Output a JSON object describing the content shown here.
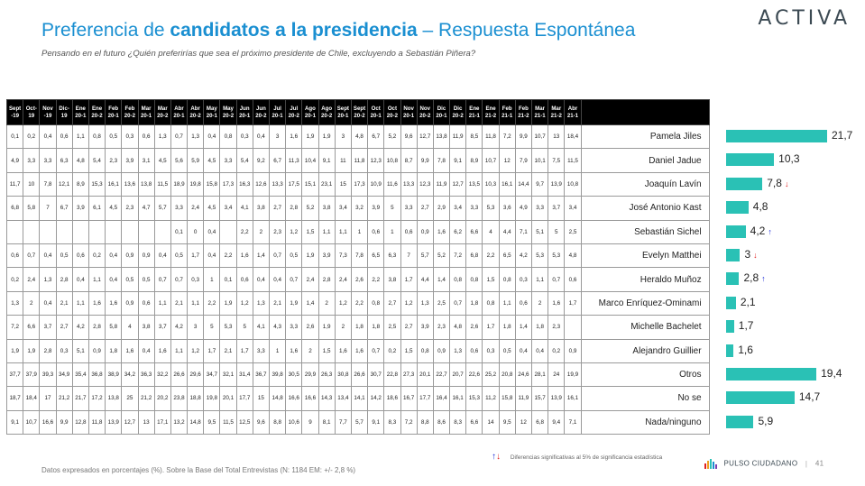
{
  "brand": "ACTIVA",
  "title_regular": "Preferencia de ",
  "title_bold": "candidatos a la presidencia",
  "title_rest": " – Respuesta Espontánea",
  "subtitle": "Pensando en el futuro ¿Quién preferirías que sea el próximo presidente de Chile, excluyendo a Sebastián Piñera?",
  "columns": [
    "Sept -19",
    "Oct-19",
    "Nov -19",
    "Dic-19",
    "Ene 20-1",
    "Ene 20-2",
    "Feb 20-1",
    "Feb 20-2",
    "Mar 20-1",
    "Mar 20-2",
    "Abr 20-1",
    "Abr 20-2",
    "May 20-1",
    "May 20-2",
    "Jun 20-1",
    "Jun 20-2",
    "Jul 20-1",
    "Jul 20-2",
    "Ago 20-1",
    "Ago 20-2",
    "Sept 20-1",
    "Sept 20-2",
    "Oct 20-1",
    "Oct 20-2",
    "Nov 20-1",
    "Nov 20-2",
    "Dic 20-1",
    "Dic 20-2",
    "Ene 21-1",
    "Ene 21-2",
    "Feb 21-1",
    "Feb 21-2",
    "Mar 21-1",
    "Mar 21-2",
    "Abr 21-1"
  ],
  "rows": [
    {
      "name": "Pamela Jiles",
      "values": [
        "0,1",
        "0,2",
        "0,4",
        "0,6",
        "1,1",
        "0,8",
        "0,5",
        "0,3",
        "0,6",
        "1,3",
        "0,7",
        "1,3",
        "0,4",
        "0,8",
        "0,3",
        "0,4",
        "3",
        "1,6",
        "1,9",
        "1,9",
        "3",
        "4,8",
        "6,7",
        "5,2",
        "9,6",
        "12,7",
        "13,8",
        "11,9",
        "8,5",
        "11,8",
        "7,2",
        "9,9",
        "10,7",
        "13",
        "18,4"
      ]
    },
    {
      "name": "Daniel Jadue",
      "values": [
        "4,9",
        "3,3",
        "3,3",
        "6,3",
        "4,8",
        "5,4",
        "2,3",
        "3,9",
        "3,1",
        "4,5",
        "5,6",
        "5,9",
        "4,5",
        "3,3",
        "5,4",
        "9,2",
        "6,7",
        "11,3",
        "10,4",
        "9,1",
        "11",
        "11,8",
        "12,3",
        "10,8",
        "8,7",
        "9,9",
        "7,8",
        "9,1",
        "8,9",
        "10,7",
        "12",
        "7,9",
        "10,1",
        "7,5",
        "11,5"
      ]
    },
    {
      "name": "Joaquín Lavín",
      "values": [
        "11,7",
        "10",
        "7,8",
        "12,1",
        "8,9",
        "15,3",
        "16,1",
        "13,6",
        "13,8",
        "11,5",
        "18,9",
        "19,8",
        "15,8",
        "17,3",
        "16,3",
        "12,6",
        "13,3",
        "17,5",
        "15,1",
        "23,1",
        "15",
        "17,3",
        "10,9",
        "11,6",
        "13,3",
        "12,3",
        "11,9",
        "12,7",
        "13,5",
        "10,3",
        "16,1",
        "14,4",
        "9,7",
        "13,9",
        "10,8"
      ]
    },
    {
      "name": "José Antonio Kast",
      "values": [
        "6,8",
        "5,8",
        "7",
        "6,7",
        "3,9",
        "6,1",
        "4,5",
        "2,3",
        "4,7",
        "5,7",
        "3,3",
        "2,4",
        "4,5",
        "3,4",
        "4,1",
        "3,8",
        "2,7",
        "2,8",
        "5,2",
        "3,8",
        "3,4",
        "3,2",
        "3,9",
        "5",
        "3,3",
        "2,7",
        "2,9",
        "3,4",
        "3,3",
        "5,3",
        "3,6",
        "4,9",
        "3,3",
        "3,7",
        "3,4"
      ]
    },
    {
      "name": "Sebastián Sichel",
      "values": [
        "",
        "",
        "",
        "",
        "",
        "",
        "",
        "",
        "",
        "",
        "0,1",
        "0",
        "0,4",
        "",
        "2,2",
        "2",
        "2,3",
        "1,2",
        "1,5",
        "1,1",
        "1,1",
        "1",
        "0,6",
        "1",
        "0,6",
        "0,9",
        "1,6",
        "6,2",
        "6,6",
        "4",
        "4,4",
        "7,1",
        "5,1",
        "5",
        "2,5"
      ]
    },
    {
      "name": "Evelyn Matthei",
      "values": [
        "0,6",
        "0,7",
        "0,4",
        "0,5",
        "0,6",
        "0,2",
        "0,4",
        "0,9",
        "0,9",
        "0,4",
        "0,5",
        "1,7",
        "0,4",
        "2,2",
        "1,6",
        "1,4",
        "0,7",
        "0,5",
        "1,9",
        "3,9",
        "7,3",
        "7,8",
        "6,5",
        "6,3",
        "7",
        "5,7",
        "5,2",
        "7,2",
        "6,8",
        "2,2",
        "6,5",
        "4,2",
        "5,3",
        "5,3",
        "4,8"
      ]
    },
    {
      "name": "Heraldo Muñoz",
      "values": [
        "0,2",
        "2,4",
        "1,3",
        "2,8",
        "0,4",
        "1,1",
        "0,4",
        "0,5",
        "0,5",
        "0,7",
        "0,7",
        "0,3",
        "1",
        "0,1",
        "0,6",
        "0,4",
        "0,4",
        "0,7",
        "2,4",
        "2,8",
        "2,4",
        "2,6",
        "2,2",
        "3,8",
        "1,7",
        "4,4",
        "1,4",
        "0,8",
        "0,8",
        "1,5",
        "0,8",
        "0,3",
        "1,1",
        "0,7",
        "0,6"
      ]
    },
    {
      "name": "Marco Enríquez-Ominami",
      "values": [
        "1,3",
        "2",
        "0,4",
        "2,1",
        "1,1",
        "1,6",
        "1,6",
        "0,9",
        "0,6",
        "1,1",
        "2,1",
        "1,1",
        "2,2",
        "1,9",
        "1,2",
        "1,3",
        "2,1",
        "1,9",
        "1,4",
        "2",
        "1,2",
        "2,2",
        "0,8",
        "2,7",
        "1,2",
        "1,3",
        "2,5",
        "0,7",
        "1,8",
        "0,8",
        "1,1",
        "0,6",
        "2",
        "1,6",
        "1,7"
      ]
    },
    {
      "name": "Michelle Bachelet",
      "values": [
        "7,2",
        "6,6",
        "3,7",
        "2,7",
        "4,2",
        "2,8",
        "5,8",
        "4",
        "3,8",
        "3,7",
        "4,2",
        "3",
        "5",
        "5,3",
        "5",
        "4,1",
        "4,3",
        "3,3",
        "2,6",
        "1,9",
        "2",
        "1,8",
        "1,8",
        "2,5",
        "2,7",
        "3,9",
        "2,3",
        "4,8",
        "2,6",
        "1,7",
        "1,8",
        "1,4",
        "1,8",
        "2,3",
        ""
      ]
    },
    {
      "name": "Alejandro Guillier",
      "values": [
        "1,9",
        "1,9",
        "2,8",
        "0,3",
        "5,1",
        "0,9",
        "1,8",
        "1,6",
        "0,4",
        "1,6",
        "1,1",
        "1,2",
        "1,7",
        "2,1",
        "1,7",
        "3,3",
        "1",
        "1,6",
        "2",
        "1,5",
        "1,6",
        "1,6",
        "0,7",
        "0,2",
        "1,5",
        "0,8",
        "0,9",
        "1,3",
        "0,6",
        "0,3",
        "0,5",
        "0,4",
        "0,4",
        "0,2",
        "0,9"
      ]
    },
    {
      "name": "Otros",
      "values": [
        "37,7",
        "37,9",
        "39,3",
        "34,9",
        "35,4",
        "36,8",
        "38,9",
        "34,2",
        "36,3",
        "32,2",
        "26,6",
        "29,6",
        "34,7",
        "32,1",
        "31,4",
        "36,7",
        "39,8",
        "30,5",
        "29,9",
        "26,3",
        "30,8",
        "26,6",
        "30,7",
        "22,8",
        "27,3",
        "20,1",
        "22,7",
        "20,7",
        "22,6",
        "25,2",
        "20,8",
        "24,6",
        "28,1",
        "24",
        "19,9"
      ]
    },
    {
      "name": "No se",
      "values": [
        "18,7",
        "18,4",
        "17",
        "21,2",
        "21,7",
        "17,2",
        "13,8",
        "25",
        "21,2",
        "20,2",
        "23,8",
        "18,8",
        "19,8",
        "20,1",
        "17,7",
        "15",
        "14,8",
        "16,6",
        "16,6",
        "14,3",
        "13,4",
        "14,1",
        "14,2",
        "18,6",
        "16,7",
        "17,7",
        "16,4",
        "16,1",
        "15,3",
        "11,2",
        "15,8",
        "11,9",
        "15,7",
        "13,9",
        "16,1"
      ]
    },
    {
      "name": "Nada/ninguno",
      "values": [
        "9,1",
        "10,7",
        "16,6",
        "9,9",
        "12,8",
        "11,8",
        "13,9",
        "12,7",
        "13",
        "17,1",
        "13,2",
        "14,8",
        "9,5",
        "11,5",
        "12,5",
        "9,6",
        "8,8",
        "10,6",
        "9",
        "8,1",
        "7,7",
        "5,7",
        "9,1",
        "8,3",
        "7,2",
        "8,8",
        "8,6",
        "8,3",
        "6,6",
        "14",
        "9,5",
        "12",
        "6,8",
        "9,4",
        "7,1"
      ]
    }
  ],
  "chart_data": {
    "type": "bar",
    "orientation": "horizontal",
    "categories": [
      "Pamela Jiles",
      "Daniel Jadue",
      "Joaquín Lavín",
      "José Antonio Kast",
      "Sebastián Sichel",
      "Evelyn Matthei",
      "Heraldo Muñoz",
      "Marco Enríquez-Ominami",
      "Michelle Bachelet",
      "Alejandro Guillier",
      "Otros",
      "No se",
      "Nada/ninguno"
    ],
    "values": [
      21.7,
      10.3,
      7.8,
      4.8,
      4.2,
      3,
      2.8,
      2.1,
      1.7,
      1.6,
      19.4,
      14.7,
      5.9
    ],
    "labels": [
      "21,7",
      "10,3",
      "7,8",
      "4,8",
      "4,2",
      "3",
      "2,8",
      "2,1",
      "1,7",
      "1,6",
      "19,4",
      "14,7",
      "5,9"
    ],
    "arrows": [
      "",
      "",
      "down",
      "",
      "up",
      "down",
      "up",
      "",
      "",
      "",
      "",
      "",
      ""
    ],
    "colors": {
      "bar": "#2ac1b5",
      "up": "#1b2bd6",
      "down": "#e02020"
    }
  },
  "legend_text": "Diferencias significativas al 5% de significancia estadística",
  "footnote": "Datos expresados en porcentajes (%). Sobre la Base del Total Entrevistas (N: 1184 EM: +/- 2,8 %)",
  "pulso_label": "PULSO CIUDADANO",
  "page_number": "41"
}
